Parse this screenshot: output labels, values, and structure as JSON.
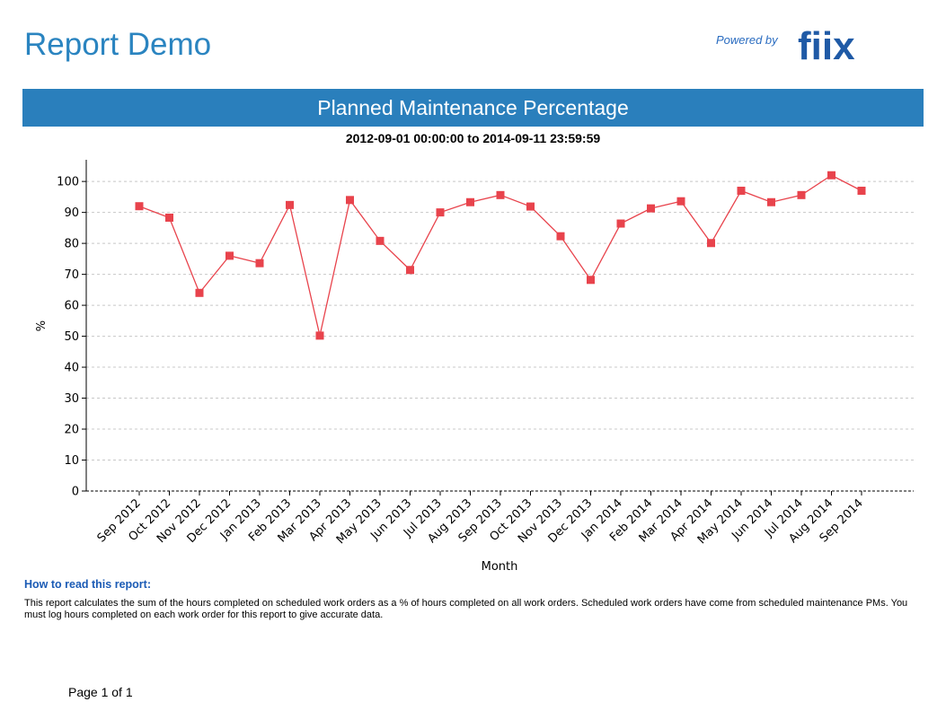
{
  "header": {
    "title": "Report Demo",
    "powered_by": "Powered by",
    "logo_text": "fiix",
    "logo_color": "#1f5aa6"
  },
  "banner": {
    "title": "Planned Maintenance Percentage",
    "color": "#2a7fbc"
  },
  "date_range": "2012-09-01 00:00:00 to 2014-09-11 23:59:59",
  "chart_data": {
    "type": "line",
    "xlabel": "Month",
    "ylabel": "%",
    "ylim": [
      0,
      107
    ],
    "yticks": [
      0,
      10,
      20,
      30,
      40,
      50,
      60,
      70,
      80,
      90,
      100
    ],
    "grid": "horizontal-dashed",
    "series_color": "#e8434c",
    "categories": [
      "Sep 2012",
      "Oct 2012",
      "Nov 2012",
      "Dec 2012",
      "Jan 2013",
      "Feb 2013",
      "Mar 2013",
      "Apr 2013",
      "May 2013",
      "Jun 2013",
      "Jul 2013",
      "Aug 2013",
      "Sep 2013",
      "Oct 2013",
      "Nov 2013",
      "Dec 2013",
      "Jan 2014",
      "Feb 2014",
      "Mar 2014",
      "Apr 2014",
      "May 2014",
      "Jun 2014",
      "Jul 2014",
      "Aug 2014",
      "Sep 2014"
    ],
    "values": [
      92,
      88.3,
      64,
      76,
      73.6,
      92.4,
      50.2,
      94,
      80.8,
      71.4,
      90,
      93.3,
      95.6,
      91.9,
      82.3,
      68.2,
      86.4,
      91.3,
      93.6,
      80.1,
      97,
      93.3,
      95.6,
      102,
      97
    ]
  },
  "howto": {
    "title": "How to read this report:",
    "body": "This report calculates the sum of the hours completed on scheduled work orders as a % of hours completed on all work orders. Scheduled work orders have come from scheduled maintenance PMs. You must log hours completed on each work order for this report to give accurate data."
  },
  "footer": {
    "page_text": "Page 1 of  1"
  }
}
